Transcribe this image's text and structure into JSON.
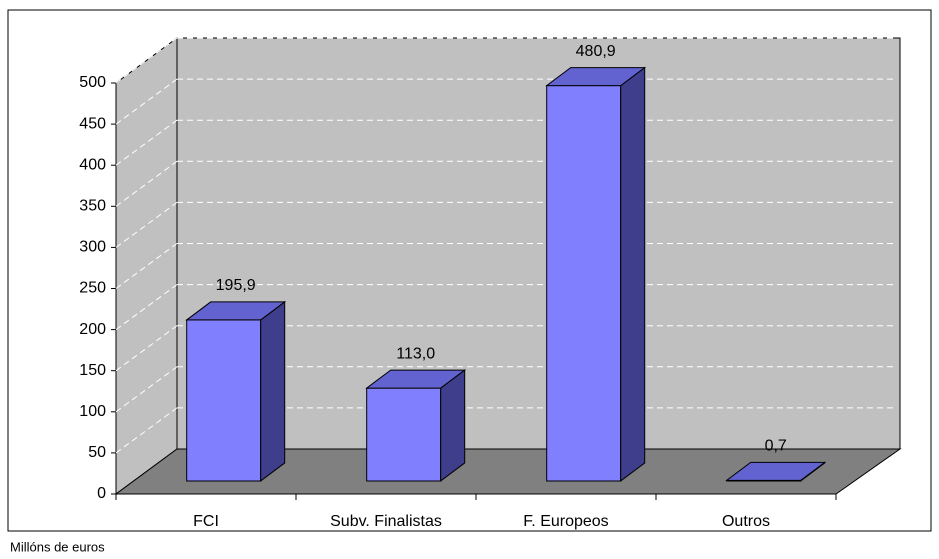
{
  "chart_data": {
    "type": "bar3d",
    "categories": [
      "FCI",
      "Subv. Finalistas",
      "F. Europeos",
      "Outros"
    ],
    "values": [
      195.9,
      113.0,
      480.9,
      0.7
    ],
    "value_labels": [
      "195,9",
      "113,0",
      "480,9",
      "0,7"
    ],
    "color": "#8080ff",
    "ylim": [
      0,
      500
    ],
    "yticks": [
      0,
      50,
      100,
      150,
      200,
      250,
      300,
      350,
      400,
      450,
      500
    ],
    "grid": true,
    "note": "Millóns de euros"
  }
}
